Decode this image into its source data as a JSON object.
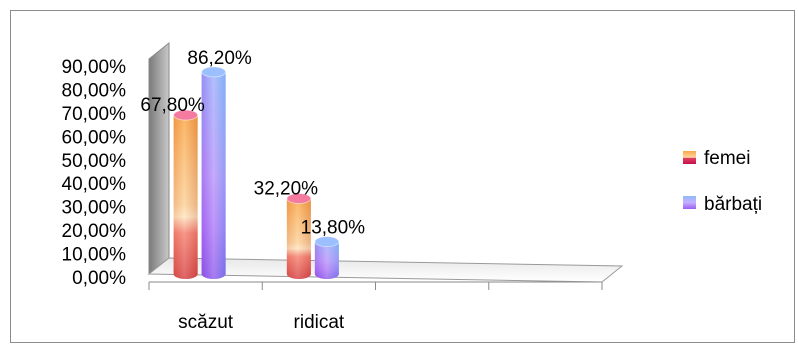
{
  "chart_data": {
    "type": "bar",
    "style": "3d-cylinder",
    "categories": [
      "scăzut",
      "ridicat"
    ],
    "category_slots": 4,
    "series": [
      {
        "name": "femei",
        "values": [
          67.8,
          32.2
        ],
        "labels": [
          "67,80%",
          "32,20%"
        ],
        "colors": [
          "#f9a84a",
          "#d4145a"
        ]
      },
      {
        "name": "bărbați",
        "values": [
          86.2,
          13.8
        ],
        "labels": [
          "86,20%",
          "13,80%"
        ],
        "colors": [
          "#7fb2f7",
          "#b25cf2"
        ]
      }
    ],
    "yticks": [
      "0,00%",
      "10,00%",
      "20,00%",
      "30,00%",
      "40,00%",
      "50,00%",
      "60,00%",
      "70,00%",
      "80,00%",
      "90,00%"
    ],
    "ylim": [
      0,
      90
    ],
    "legend_position": "right",
    "grid": false
  }
}
